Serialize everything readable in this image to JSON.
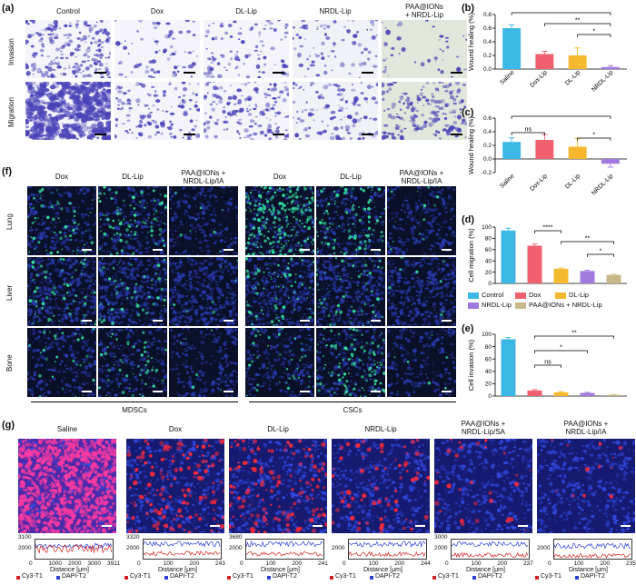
{
  "panels": {
    "a": {
      "label": "(a)",
      "columns": [
        "Control",
        "Dox",
        "DL-Lip",
        "NRDL-Lip",
        "PAA@IONs\n+ NRDL-Lip"
      ],
      "rows": [
        "Invasion",
        "Migration"
      ]
    },
    "f": {
      "label": "(f)",
      "columns": [
        "Dox",
        "DL-Lip",
        "PAA@IONs +\nNRDL-Lip/IA",
        "Dox",
        "DL-Lip",
        "PAA@IONs +\nNRDL-Lip/IA"
      ],
      "rows": [
        "Lung",
        "Liver",
        "Bone"
      ],
      "groups": [
        "MDSCs",
        "CSCs"
      ]
    },
    "g": {
      "label": "(g)",
      "columns": [
        "Saline",
        "Dox",
        "DL-Lip",
        "NRDL-Lip",
        "PAA@IONs +\nNRDL-Lip/SA",
        "PAA@IONs +\nNRDL-Lip/IA"
      ],
      "profiles": [
        {
          "ymax": "3100",
          "ymid": "2000",
          "xticks": [
            "0",
            "1000",
            "2000",
            "3000",
            "3911"
          ]
        },
        {
          "ymax": "3320",
          "ymid": "2000",
          "xticks": [
            "0",
            "100",
            "200",
            "243"
          ]
        },
        {
          "ymax": "3680",
          "ymid": "2000",
          "xticks": [
            "0",
            "100",
            "200",
            "241"
          ]
        },
        {
          "ymax": "",
          "ymid": "2000",
          "xticks": [
            "0",
            "100",
            "200",
            "244"
          ]
        },
        {
          "ymax": "3000",
          "ymid": "2000",
          "xticks": [
            "0",
            "100",
            "200",
            "237"
          ]
        },
        {
          "ymax": "",
          "ymid": "2000",
          "xticks": [
            "0",
            "100",
            "200",
            "235"
          ]
        }
      ],
      "xaxis_label": "Distance [μm]",
      "legend": [
        "Cy3-T1",
        "DAPI-T2"
      ]
    },
    "b": {
      "label": "(b)"
    },
    "c": {
      "label": "(c)"
    },
    "d": {
      "label": "(d)"
    },
    "e": {
      "label": "(e)"
    }
  },
  "colors": {
    "saline": "#3db8e6",
    "dox": "#f0606e",
    "dllip": "#f5b82e",
    "nrdl": "#a37be0",
    "paa": "#c9b98a",
    "cy3": "#d42020",
    "dapi": "#2a3fd6"
  },
  "legend_de": [
    "Control",
    "Dox",
    "DL-Lip",
    "NRDL-Lip",
    "PAA@IONs + NRDL-Lip"
  ],
  "chart_data": [
    {
      "type": "bar",
      "panel": "b",
      "categories": [
        "Saline",
        "Dox-Lip",
        "DL-Lip",
        "NRDL-Lip"
      ],
      "values": [
        0.6,
        0.22,
        0.2,
        0.03
      ],
      "errors": [
        0.05,
        0.04,
        0.11,
        0.02
      ],
      "ylabel": "Wound healing (%)",
      "yticks": [
        "0.0",
        "0.2",
        "0.4",
        "0.6",
        "0.8"
      ],
      "ylim": [
        0,
        0.8
      ],
      "significance": [
        {
          "from": 0,
          "to": 3,
          "label": "****"
        },
        {
          "from": 1,
          "to": 3,
          "label": "**"
        },
        {
          "from": 2,
          "to": 3,
          "label": "*"
        }
      ]
    },
    {
      "type": "bar",
      "panel": "c",
      "categories": [
        "Saline",
        "Dox-Lip",
        "DL-Lip",
        "NRDL-Lip"
      ],
      "values": [
        0.25,
        0.28,
        0.18,
        -0.07
      ],
      "errors": [
        0.06,
        0.08,
        0.12,
        0.05
      ],
      "ylabel": "Wound healing (%)",
      "yticks": [
        "-0.2",
        "0.0",
        "0.2",
        "0.4",
        "0.6"
      ],
      "ylim": [
        -0.2,
        0.6
      ],
      "significance": [
        {
          "from": 0,
          "to": 1,
          "label": "ns"
        },
        {
          "from": 0,
          "to": 3,
          "label": "**"
        },
        {
          "from": 2,
          "to": 3,
          "label": "*"
        }
      ]
    },
    {
      "type": "bar",
      "panel": "d",
      "categories": [
        "Control",
        "Dox",
        "DL-Lip",
        "NRDL-Lip",
        "PAA@IONs + NRDL-Lip"
      ],
      "values": [
        94,
        67,
        26,
        22,
        15
      ],
      "errors": [
        4,
        3,
        1.5,
        1.5,
        1.5
      ],
      "ylabel": "Cell migration (%)",
      "yticks": [
        "0",
        "20",
        "40",
        "60",
        "80",
        "100"
      ],
      "ylim": [
        0,
        100
      ],
      "significance": [
        {
          "from": 1,
          "to": 2,
          "label": "****"
        },
        {
          "from": 2,
          "to": 4,
          "label": "**"
        },
        {
          "from": 3,
          "to": 4,
          "label": "*"
        }
      ]
    },
    {
      "type": "bar",
      "panel": "e",
      "categories": [
        "Control",
        "Dox",
        "DL-Lip",
        "NRDL-Lip",
        "PAA@IONs + NRDL-Lip"
      ],
      "values": [
        92,
        9,
        6,
        5,
        2
      ],
      "errors": [
        3,
        1.5,
        1,
        1,
        0.5
      ],
      "ylabel": "Cell invasion (%)",
      "yticks": [
        "0",
        "20",
        "40",
        "60",
        "80",
        "100"
      ],
      "ylim": [
        0,
        100
      ],
      "significance": [
        {
          "from": 1,
          "to": 4,
          "label": "**"
        },
        {
          "from": 1,
          "to": 3,
          "label": "*"
        },
        {
          "from": 1,
          "to": 2,
          "label": "ns"
        }
      ]
    }
  ]
}
